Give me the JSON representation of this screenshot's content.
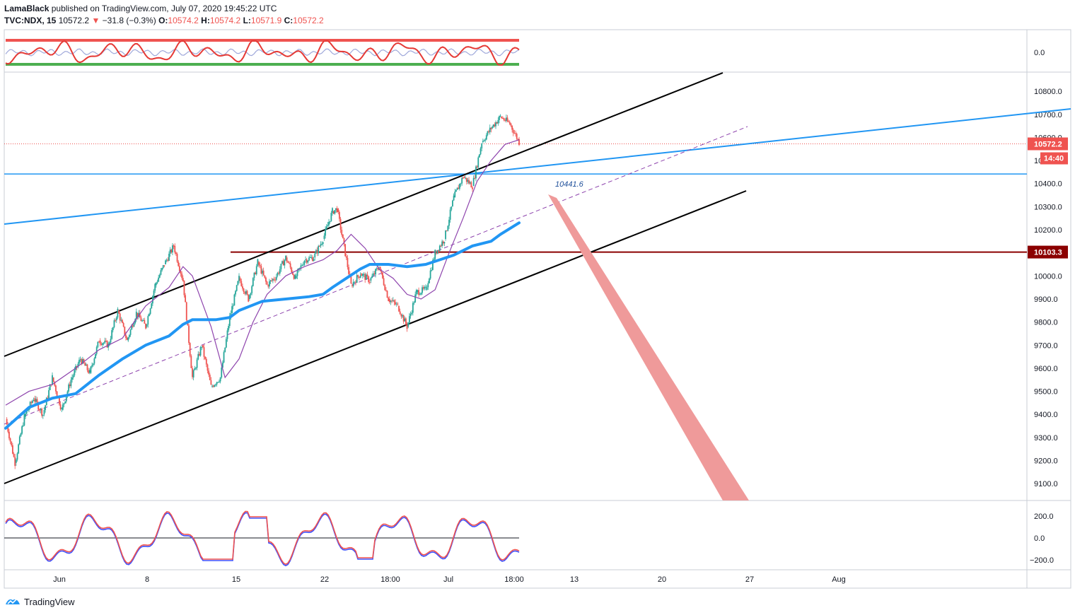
{
  "header": {
    "author": "LamaBlack",
    "published": "published on TradingView.com, July 07, 2020 19:45:22 UTC",
    "symbol": "TVC:NDX, 15",
    "last": "10572.2",
    "change_arrow": "▼",
    "change": "−31.8 (−0.3%)",
    "o_label": "O:",
    "o_val": "10574.2",
    "h_label": "H:",
    "h_val": "10574.2",
    "l_label": "L:",
    "l_val": "10571.9",
    "c_label": "C:",
    "c_val": "10572.2"
  },
  "footer": {
    "brand": "TradingView",
    "logo_icon": "tradingview-logo-icon"
  },
  "colors": {
    "up": "#26a69a",
    "down": "#ef5350",
    "channel": "#000000",
    "trendline": "#2196f3",
    "horizontal": "#2196f3",
    "support": "#8b0000",
    "ma_thick": "#2196f3",
    "ma_thin": "#8e44ad",
    "arrow": "#ef9a9a",
    "osc_red": "#ef5350",
    "osc_blue": "#3f51ff",
    "osc_green": "#4caf50"
  },
  "chart_data": [
    {
      "type": "line",
      "panel": "top-oscillator",
      "y_ticks": [
        "0.0"
      ],
      "series": []
    },
    {
      "type": "candlestick",
      "panel": "main-price",
      "symbol": "TVC:NDX",
      "interval": "15",
      "y_ticks": [
        9100,
        9200,
        9300,
        9400,
        9500,
        9600,
        9700,
        9800,
        9900,
        10000,
        10100,
        10200,
        10300,
        10400,
        10500,
        10600,
        10700,
        10800
      ],
      "ylim": [
        9030,
        10880
      ],
      "x_ticks": [
        "Jun",
        "8",
        "15",
        "22",
        "18:00",
        "Jul",
        "18:00",
        "13",
        "20",
        "27",
        "Aug"
      ],
      "price_labels": {
        "last": "10572.2",
        "countdown": "14:40",
        "support": "10103.3",
        "annotation": "10441.6"
      },
      "levels": {
        "horizontal_blue": 10441.6,
        "support_dark_red": 10103.3,
        "last": 10572.2
      },
      "price_path": [
        [
          0,
          9380
        ],
        [
          2,
          9190
        ],
        [
          4,
          9390
        ],
        [
          6,
          9470
        ],
        [
          8,
          9400
        ],
        [
          10,
          9560
        ],
        [
          12,
          9420
        ],
        [
          14,
          9550
        ],
        [
          16,
          9640
        ],
        [
          18,
          9580
        ],
        [
          20,
          9720
        ],
        [
          22,
          9700
        ],
        [
          24,
          9850
        ],
        [
          26,
          9720
        ],
        [
          28,
          9840
        ],
        [
          30,
          9780
        ],
        [
          32,
          9960
        ],
        [
          34,
          10050
        ],
        [
          36,
          10130
        ],
        [
          38,
          9980
        ],
        [
          40,
          9560
        ],
        [
          42,
          9700
        ],
        [
          44,
          9520
        ],
        [
          46,
          9560
        ],
        [
          48,
          9820
        ],
        [
          50,
          9990
        ],
        [
          52,
          9900
        ],
        [
          54,
          10060
        ],
        [
          56,
          9960
        ],
        [
          58,
          10000
        ],
        [
          60,
          10080
        ],
        [
          62,
          9990
        ],
        [
          64,
          10070
        ],
        [
          66,
          10080
        ],
        [
          68,
          10160
        ],
        [
          70,
          10280
        ],
        [
          71,
          10290
        ],
        [
          72,
          10180
        ],
        [
          74,
          9960
        ],
        [
          76,
          10010
        ],
        [
          78,
          9980
        ],
        [
          80,
          10040
        ],
        [
          82,
          9900
        ],
        [
          84,
          9870
        ],
        [
          86,
          9780
        ],
        [
          88,
          9930
        ],
        [
          90,
          9940
        ],
        [
          92,
          10100
        ],
        [
          94,
          10160
        ],
        [
          96,
          10340
        ],
        [
          98,
          10430
        ],
        [
          100,
          10390
        ],
        [
          102,
          10580
        ],
        [
          104,
          10640
        ],
        [
          106,
          10690
        ],
        [
          108,
          10660
        ],
        [
          110,
          10580
        ]
      ],
      "ma_thick": [
        [
          0,
          9340
        ],
        [
          5,
          9430
        ],
        [
          10,
          9470
        ],
        [
          15,
          9490
        ],
        [
          20,
          9570
        ],
        [
          25,
          9640
        ],
        [
          30,
          9700
        ],
        [
          35,
          9740
        ],
        [
          38,
          9790
        ],
        [
          40,
          9810
        ],
        [
          45,
          9810
        ],
        [
          48,
          9820
        ],
        [
          50,
          9850
        ],
        [
          55,
          9890
        ],
        [
          60,
          9900
        ],
        [
          65,
          9910
        ],
        [
          68,
          9920
        ],
        [
          70,
          9950
        ],
        [
          73,
          9990
        ],
        [
          76,
          10030
        ],
        [
          78,
          10050
        ],
        [
          82,
          10050
        ],
        [
          86,
          10040
        ],
        [
          90,
          10050
        ],
        [
          93,
          10070
        ],
        [
          96,
          10090
        ],
        [
          100,
          10130
        ],
        [
          104,
          10150
        ],
        [
          106,
          10180
        ],
        [
          110,
          10230
        ]
      ],
      "ma_thin": [
        [
          0,
          9440
        ],
        [
          5,
          9500
        ],
        [
          10,
          9530
        ],
        [
          15,
          9600
        ],
        [
          20,
          9680
        ],
        [
          25,
          9730
        ],
        [
          30,
          9870
        ],
        [
          35,
          9950
        ],
        [
          38,
          10040
        ],
        [
          40,
          10000
        ],
        [
          44,
          9780
        ],
        [
          47,
          9560
        ],
        [
          50,
          9640
        ],
        [
          53,
          9800
        ],
        [
          56,
          9920
        ],
        [
          60,
          10000
        ],
        [
          64,
          10040
        ],
        [
          68,
          10070
        ],
        [
          71,
          10110
        ],
        [
          74,
          10180
        ],
        [
          77,
          10120
        ],
        [
          80,
          10030
        ],
        [
          83,
          9990
        ],
        [
          86,
          9920
        ],
        [
          89,
          9900
        ],
        [
          92,
          9940
        ],
        [
          95,
          10100
        ],
        [
          98,
          10250
        ],
        [
          101,
          10410
        ],
        [
          104,
          10500
        ],
        [
          107,
          10570
        ],
        [
          110,
          10590
        ]
      ]
    },
    {
      "type": "line",
      "panel": "bottom-oscillator",
      "y_ticks": [
        "200.0",
        "0.0",
        "−200.0"
      ],
      "ylim": [
        -280,
        320
      ],
      "series": []
    }
  ]
}
